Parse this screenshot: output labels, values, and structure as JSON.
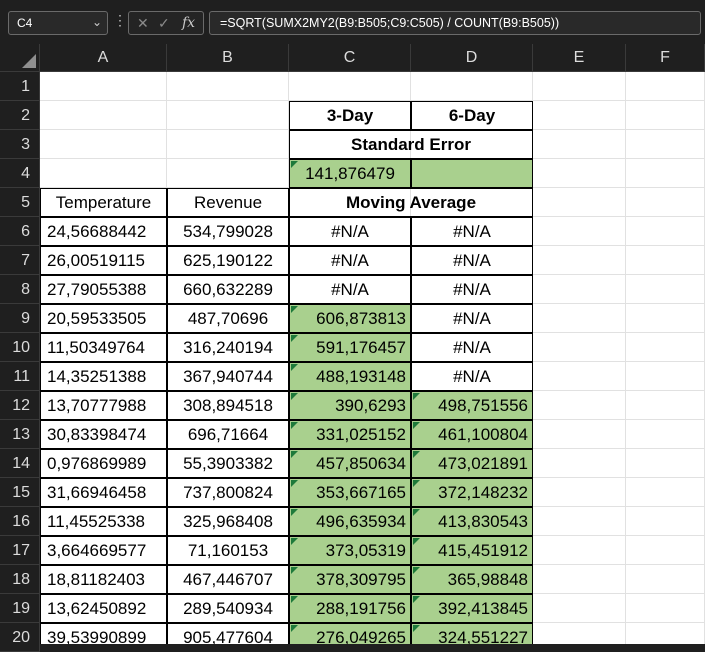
{
  "name_box": "C4",
  "formula": "=SQRT(SUMX2MY2(B9:B505;C9:C505) / COUNT(B9:B505))",
  "columns": [
    "A",
    "B",
    "C",
    "D",
    "E",
    "F"
  ],
  "rows": [
    "1",
    "2",
    "3",
    "4",
    "5",
    "6",
    "7",
    "8",
    "9",
    "10",
    "11",
    "12",
    "13",
    "14",
    "15",
    "16",
    "17",
    "18",
    "19",
    "20"
  ],
  "header_3day": "3-Day",
  "header_6day": "6-Day",
  "standard_error_label": "Standard Error",
  "standard_error_value": "141,876479",
  "moving_average_label": "Moving Average",
  "temperature_label": "Temperature",
  "revenue_label": "Revenue",
  "data_rows": [
    {
      "a": "24,56688442",
      "b": "534,799028",
      "c": "#N/A",
      "d": "#N/A"
    },
    {
      "a": "26,00519115",
      "b": "625,190122",
      "c": "#N/A",
      "d": "#N/A"
    },
    {
      "a": "27,79055388",
      "b": "660,632289",
      "c": "#N/A",
      "d": "#N/A"
    },
    {
      "a": "20,59533505",
      "b": "487,70696",
      "c": "606,873813",
      "d": "#N/A"
    },
    {
      "a": "11,50349764",
      "b": "316,240194",
      "c": "591,176457",
      "d": "#N/A"
    },
    {
      "a": "14,35251388",
      "b": "367,940744",
      "c": "488,193148",
      "d": "#N/A"
    },
    {
      "a": "13,70777988",
      "b": "308,894518",
      "c": "390,6293",
      "d": "498,751556"
    },
    {
      "a": "30,83398474",
      "b": "696,71664",
      "c": "331,025152",
      "d": "461,100804"
    },
    {
      "a": "0,976869989",
      "b": "55,3903382",
      "c": "457,850634",
      "d": "473,021891"
    },
    {
      "a": "31,66946458",
      "b": "737,800824",
      "c": "353,667165",
      "d": "372,148232"
    },
    {
      "a": "11,45525338",
      "b": "325,968408",
      "c": "496,635934",
      "d": "413,830543"
    },
    {
      "a": "3,664669577",
      "b": "71,160153",
      "c": "373,05319",
      "d": "415,451912"
    },
    {
      "a": "18,81182403",
      "b": "467,446707",
      "c": "378,309795",
      "d": "365,98848"
    },
    {
      "a": "13,62450892",
      "b": "289,540934",
      "c": "288,191756",
      "d": "392,413845"
    },
    {
      "a": "39,53990899",
      "b": "905,477604",
      "c": "276,049265",
      "d": "324,551227"
    }
  ],
  "colors": {
    "highlight": "#a9d08e",
    "error_triangle": "#1e7a3a",
    "header_bg": "#1f1f1f"
  },
  "icons": [
    "chevron-down-icon",
    "more-options-icon",
    "cancel-icon",
    "enter-icon",
    "insert-function-icon"
  ]
}
